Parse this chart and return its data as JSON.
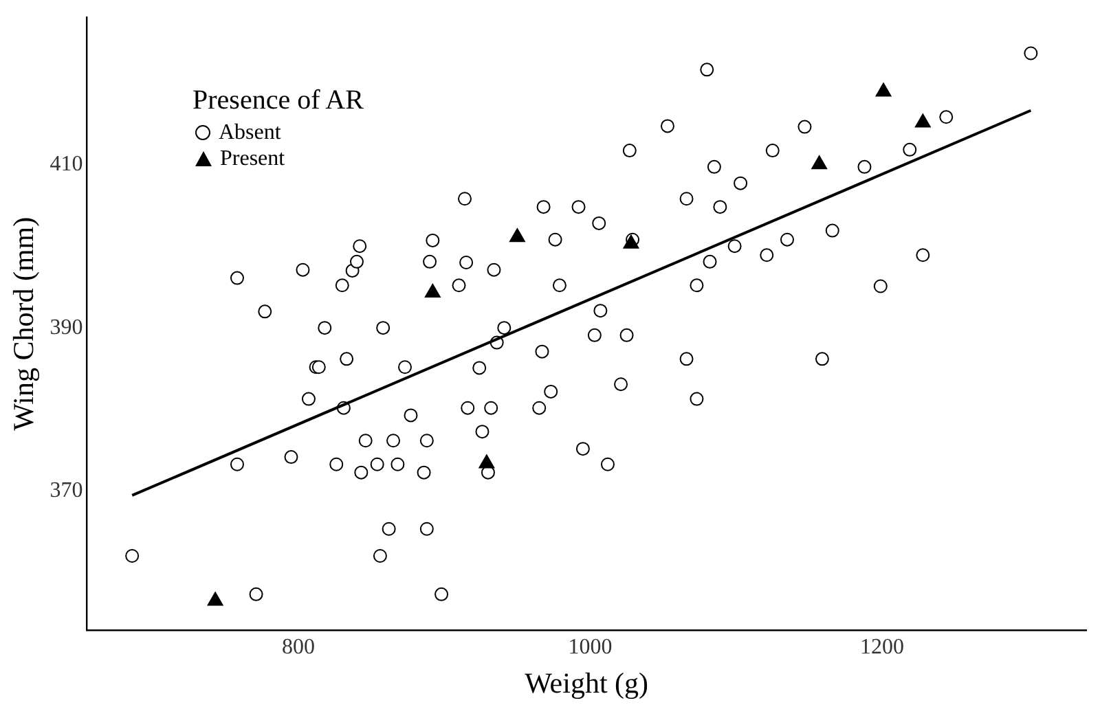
{
  "chart_data": {
    "type": "scatter",
    "xlabel": "Weight (g)",
    "ylabel": "Wing Chord (mm)",
    "legend_title": "Presence of AR",
    "legend": "top left",
    "grid": false,
    "xlim": [
      655,
      1340
    ],
    "xticks": [
      800,
      1000,
      1200
    ],
    "ylim": [
      353,
      428
    ],
    "yticks": [
      370,
      390,
      410
    ],
    "series": [
      {
        "name": "Absent",
        "type": "scatter",
        "marker": "circle",
        "color": "#000000",
        "x": [
          686,
          771,
          795,
          807,
          812,
          814,
          833,
          831,
          818,
          858,
          873,
          877,
          846,
          865,
          888,
          826,
          843,
          854,
          868,
          886,
          862,
          888,
          856,
          898,
          916,
          941,
          936,
          924,
          967,
          1003,
          1025,
          1066,
          1159,
          1021,
          1073,
          973,
          965,
          932,
          926,
          995,
          1012,
          930,
          758,
          777,
          803,
          830,
          837,
          840,
          842,
          892,
          890,
          910,
          915,
          914,
          934,
          968,
          992,
          976,
          1006,
          1027,
          1053,
          1080,
          1029,
          979,
          1007,
          1066,
          1085,
          1103,
          1089,
          1125,
          1147,
          1082,
          1073,
          1099,
          1121,
          1135,
          1166,
          1244,
          1302,
          1219,
          1188,
          1228,
          1199,
          758
        ],
        "values": [
          362.1,
          357.4,
          374.2,
          381.3,
          385.2,
          385.2,
          386.2,
          380.2,
          390.0,
          390.0,
          385.2,
          379.3,
          376.2,
          376.2,
          376.2,
          373.3,
          372.3,
          373.3,
          373.3,
          372.3,
          365.4,
          365.4,
          362.1,
          357.4,
          380.2,
          390.0,
          388.2,
          385.1,
          387.1,
          389.1,
          389.1,
          386.2,
          386.2,
          383.1,
          381.3,
          382.2,
          380.2,
          380.2,
          377.3,
          375.2,
          373.3,
          372.3,
          396.1,
          392.0,
          397.1,
          395.2,
          397.0,
          398.1,
          400.0,
          400.7,
          398.1,
          395.2,
          398.0,
          405.8,
          397.1,
          404.8,
          404.8,
          400.8,
          402.8,
          411.7,
          414.7,
          421.6,
          400.8,
          395.2,
          392.1,
          405.8,
          409.7,
          407.7,
          404.8,
          411.7,
          414.6,
          398.1,
          395.2,
          400.0,
          398.9,
          400.8,
          401.9,
          415.8,
          423.6,
          411.8,
          409.7,
          398.9,
          395.1,
          373.3
        ]
      },
      {
        "name": "Present",
        "type": "scatter",
        "marker": "triangle",
        "color": "#000000",
        "x": [
          743,
          929,
          892,
          950,
          1028,
          1157,
          1201,
          1228
        ],
        "values": [
          356.6,
          373.4,
          394.3,
          401.1,
          400.3,
          410.0,
          418.9,
          415.1
        ]
      },
      {
        "type": "line",
        "color": "#000000",
        "x": [
          686,
          1302
        ],
        "values": [
          369.5,
          416.6
        ]
      }
    ]
  }
}
